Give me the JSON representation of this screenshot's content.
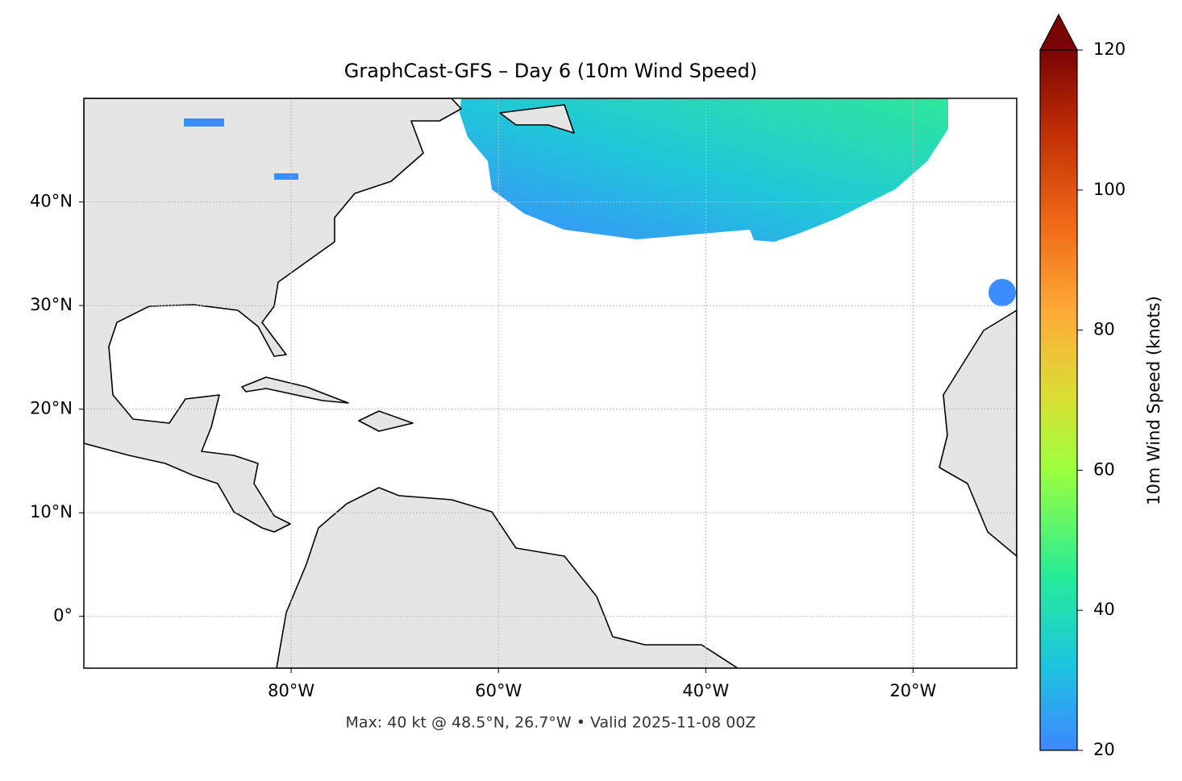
{
  "chart_data": {
    "type": "map",
    "title": "GraphCast-GFS – Day 6 (10m Wind Speed)",
    "footer": "Max: 40 kt @ 48.5°N, 26.7°W • Valid 2025-11-08 00Z",
    "xlim": [
      -100,
      -10
    ],
    "ylim": [
      -5,
      50
    ],
    "xticks": [
      {
        "value": -80,
        "label": "80°W"
      },
      {
        "value": -60,
        "label": "60°W"
      },
      {
        "value": -40,
        "label": "40°W"
      },
      {
        "value": -20,
        "label": "20°W"
      }
    ],
    "yticks": [
      {
        "value": 0,
        "label": "0°"
      },
      {
        "value": 10,
        "label": "10°N"
      },
      {
        "value": 20,
        "label": "20°N"
      },
      {
        "value": 30,
        "label": "30°N"
      },
      {
        "value": 40,
        "label": "40°N"
      }
    ],
    "grid": true,
    "colorbar": {
      "label": "10m Wind Speed (knots)",
      "lim": [
        20,
        120
      ],
      "ticks": [
        20,
        40,
        60,
        80,
        100,
        120
      ]
    }
  }
}
